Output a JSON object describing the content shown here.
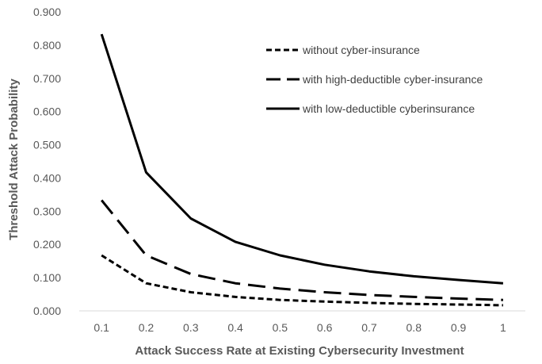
{
  "chart_data": {
    "type": "line",
    "title": "",
    "xlabel": "Attack Success Rate at Existing Cybersecurity Investment",
    "ylabel": "Threshold Attack Probability",
    "x": [
      0.1,
      0.2,
      0.3,
      0.4,
      0.5,
      0.6,
      0.7,
      0.8,
      0.9,
      1.0
    ],
    "x_tick_labels": [
      "0.1",
      "0.2",
      "0.3",
      "0.4",
      "0.5",
      "0.6",
      "0.7",
      "0.8",
      "0.9",
      "1"
    ],
    "y_tick_labels": [
      "0.000",
      "0.100",
      "0.200",
      "0.300",
      "0.400",
      "0.500",
      "0.600",
      "0.700",
      "0.800",
      "0.900"
    ],
    "ylim": [
      0,
      0.9
    ],
    "grid": false,
    "legend_position": "top-right",
    "series": [
      {
        "name": "without cyber-insurance",
        "style": "short-dash",
        "color": "#000000",
        "values": [
          0.167,
          0.083,
          0.056,
          0.042,
          0.033,
          0.028,
          0.024,
          0.021,
          0.019,
          0.017
        ]
      },
      {
        "name": "with high-deductible cyber-insurance",
        "style": "long-dash",
        "color": "#000000",
        "values": [
          0.333,
          0.167,
          0.111,
          0.083,
          0.067,
          0.056,
          0.048,
          0.042,
          0.037,
          0.033
        ]
      },
      {
        "name": "with low-deductible cyberinsurance",
        "style": "solid",
        "color": "#000000",
        "values": [
          0.833,
          0.417,
          0.278,
          0.208,
          0.167,
          0.139,
          0.119,
          0.104,
          0.093,
          0.083
        ]
      }
    ]
  }
}
